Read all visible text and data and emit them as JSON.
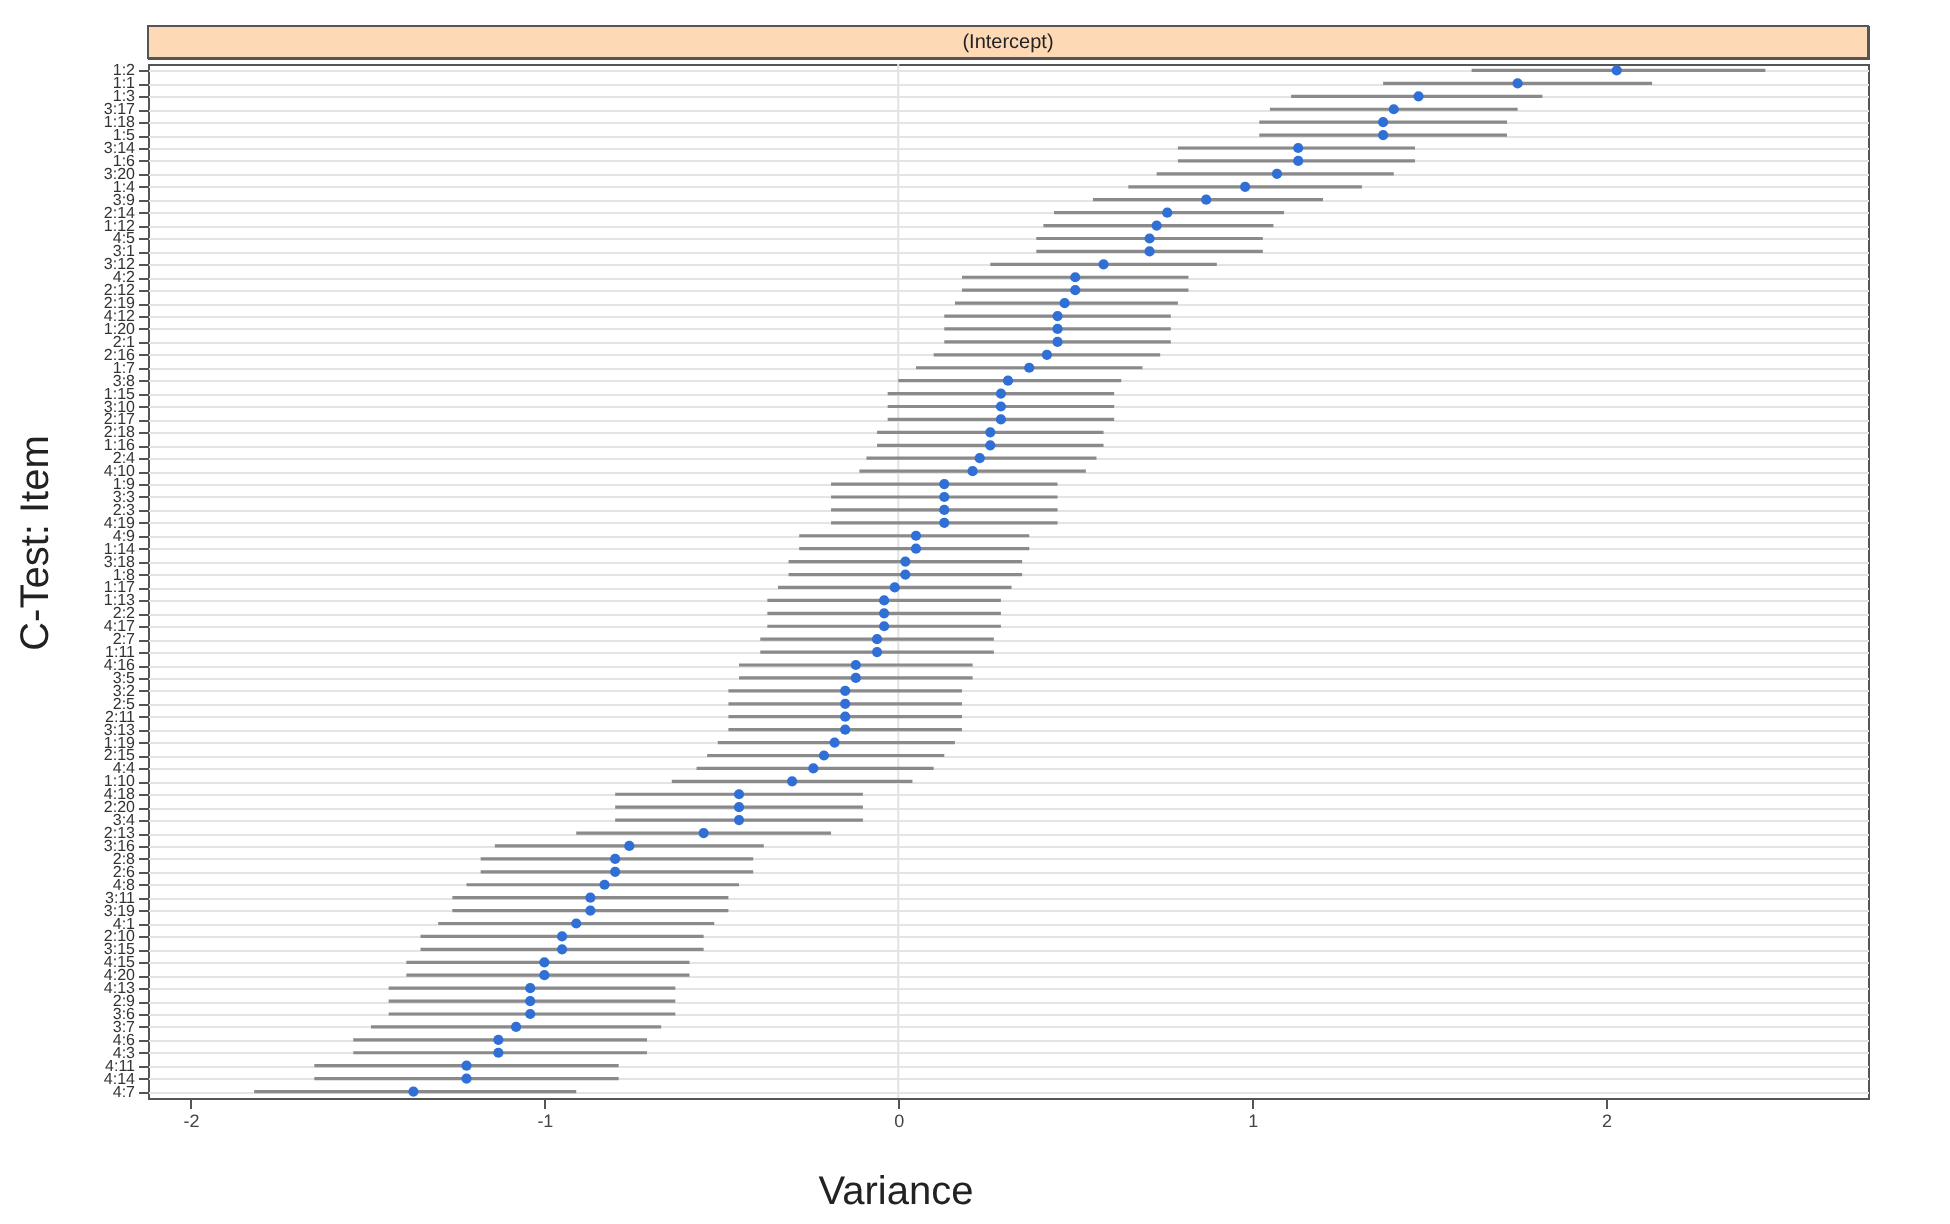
{
  "chart_data": {
    "type": "scatter",
    "orientation": "horizontal",
    "title": "(Intercept)",
    "xlabel": "Variance",
    "ylabel": "C-Test: Item",
    "categories": [
      "1:2",
      "1:1",
      "1:3",
      "3:17",
      "1:18",
      "1:5",
      "3:14",
      "1:6",
      "3:20",
      "1:4",
      "3:9",
      "2:14",
      "1:12",
      "4:5",
      "3:1",
      "3:12",
      "4:2",
      "2:12",
      "2:19",
      "4:12",
      "1:20",
      "2:1",
      "2:16",
      "1:7",
      "3:8",
      "1:15",
      "3:10",
      "2:17",
      "2:18",
      "1:16",
      "2:4",
      "4:10",
      "1:9",
      "3:3",
      "2:3",
      "4:19",
      "4:9",
      "1:14",
      "3:18",
      "1:8",
      "1:17",
      "1:13",
      "2:2",
      "4:17",
      "2:7",
      "1:11",
      "4:16",
      "3:5",
      "3:2",
      "2:5",
      "2:11",
      "3:13",
      "1:19",
      "2:15",
      "4:4",
      "1:10",
      "4:18",
      "2:20",
      "3:4",
      "2:13",
      "3:16",
      "2:8",
      "2:6",
      "4:8",
      "3:11",
      "3:19",
      "4:1",
      "2:10",
      "3:15",
      "4:15",
      "4:20",
      "4:13",
      "2:9",
      "3:6",
      "3:7",
      "4:6",
      "4:3",
      "4:11",
      "4:14",
      "4:7"
    ],
    "series": [
      {
        "color": "#2f6fd6",
        "values": [
          2.03,
          1.75,
          1.47,
          1.4,
          1.37,
          1.37,
          1.13,
          1.13,
          1.07,
          0.98,
          0.87,
          0.76,
          0.73,
          0.71,
          0.71,
          0.58,
          0.5,
          0.5,
          0.47,
          0.45,
          0.45,
          0.45,
          0.42,
          0.37,
          0.31,
          0.29,
          0.29,
          0.29,
          0.26,
          0.26,
          0.23,
          0.21,
          0.13,
          0.13,
          0.13,
          0.13,
          0.05,
          0.05,
          0.02,
          0.02,
          -0.01,
          -0.04,
          -0.04,
          -0.04,
          -0.06,
          -0.06,
          -0.12,
          -0.12,
          -0.15,
          -0.15,
          -0.15,
          -0.15,
          -0.18,
          -0.21,
          -0.24,
          -0.3,
          -0.45,
          -0.45,
          -0.45,
          -0.55,
          -0.76,
          -0.8,
          -0.8,
          -0.83,
          -0.87,
          -0.87,
          -0.91,
          -0.95,
          -0.95,
          -1.0,
          -1.0,
          -1.04,
          -1.04,
          -1.04,
          -1.08,
          -1.13,
          -1.13,
          -1.22,
          -1.22,
          -1.37
        ],
        "errors": [
          [
            1.62,
            2.45
          ],
          [
            1.37,
            2.13
          ],
          [
            1.11,
            1.82
          ],
          [
            1.05,
            1.75
          ],
          [
            1.02,
            1.72
          ],
          [
            1.02,
            1.72
          ],
          [
            0.79,
            1.46
          ],
          [
            0.79,
            1.46
          ],
          [
            0.73,
            1.4
          ],
          [
            0.65,
            1.31
          ],
          [
            0.55,
            1.2
          ],
          [
            0.44,
            1.09
          ],
          [
            0.41,
            1.06
          ],
          [
            0.39,
            1.03
          ],
          [
            0.39,
            1.03
          ],
          [
            0.26,
            0.9
          ],
          [
            0.18,
            0.82
          ],
          [
            0.18,
            0.82
          ],
          [
            0.16,
            0.79
          ],
          [
            0.13,
            0.77
          ],
          [
            0.13,
            0.77
          ],
          [
            0.13,
            0.77
          ],
          [
            0.1,
            0.74
          ],
          [
            0.05,
            0.69
          ],
          [
            0.0,
            0.63
          ],
          [
            -0.03,
            0.61
          ],
          [
            -0.03,
            0.61
          ],
          [
            -0.03,
            0.61
          ],
          [
            -0.06,
            0.58
          ],
          [
            -0.06,
            0.58
          ],
          [
            -0.09,
            0.56
          ],
          [
            -0.11,
            0.53
          ],
          [
            -0.19,
            0.45
          ],
          [
            -0.19,
            0.45
          ],
          [
            -0.19,
            0.45
          ],
          [
            -0.19,
            0.45
          ],
          [
            -0.28,
            0.37
          ],
          [
            -0.28,
            0.37
          ],
          [
            -0.31,
            0.35
          ],
          [
            -0.31,
            0.35
          ],
          [
            -0.34,
            0.32
          ],
          [
            -0.37,
            0.29
          ],
          [
            -0.37,
            0.29
          ],
          [
            -0.37,
            0.29
          ],
          [
            -0.39,
            0.27
          ],
          [
            -0.39,
            0.27
          ],
          [
            -0.45,
            0.21
          ],
          [
            -0.45,
            0.21
          ],
          [
            -0.48,
            0.18
          ],
          [
            -0.48,
            0.18
          ],
          [
            -0.48,
            0.18
          ],
          [
            -0.48,
            0.18
          ],
          [
            -0.51,
            0.16
          ],
          [
            -0.54,
            0.13
          ],
          [
            -0.57,
            0.1
          ],
          [
            -0.64,
            0.04
          ],
          [
            -0.8,
            -0.1
          ],
          [
            -0.8,
            -0.1
          ],
          [
            -0.8,
            -0.1
          ],
          [
            -0.91,
            -0.19
          ],
          [
            -1.14,
            -0.38
          ],
          [
            -1.18,
            -0.41
          ],
          [
            -1.18,
            -0.41
          ],
          [
            -1.22,
            -0.45
          ],
          [
            -1.26,
            -0.48
          ],
          [
            -1.26,
            -0.48
          ],
          [
            -1.3,
            -0.52
          ],
          [
            -1.35,
            -0.55
          ],
          [
            -1.35,
            -0.55
          ],
          [
            -1.39,
            -0.59
          ],
          [
            -1.39,
            -0.59
          ],
          [
            -1.44,
            -0.63
          ],
          [
            -1.44,
            -0.63
          ],
          [
            -1.44,
            -0.63
          ],
          [
            -1.49,
            -0.67
          ],
          [
            -1.54,
            -0.71
          ],
          [
            -1.54,
            -0.71
          ],
          [
            -1.65,
            -0.79
          ],
          [
            -1.65,
            -0.79
          ],
          [
            -1.82,
            -0.91
          ]
        ]
      }
    ],
    "xlim": [
      -2.12,
      2.74
    ],
    "xticks": [
      -2,
      -1,
      0,
      1,
      2
    ],
    "grid": "y",
    "marker": "circle",
    "ref_lines": [
      {
        "axis": "x",
        "value": 0,
        "color": "#e2e2e2"
      }
    ]
  }
}
